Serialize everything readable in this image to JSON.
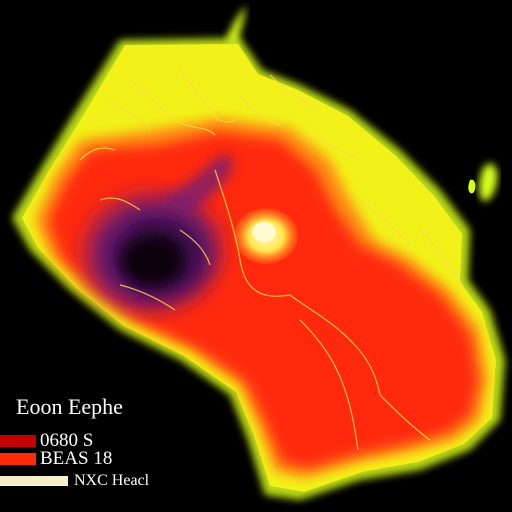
{
  "legend": {
    "title": "Eoon Eephe",
    "items": [
      {
        "label": "0680 S",
        "color": "#c40000"
      },
      {
        "label": "BEAS 18",
        "color": "#ff2a0a"
      },
      {
        "label": "NXC Heacl",
        "color": "#f5f0c8"
      }
    ]
  },
  "colors": {
    "background": "#000000",
    "outer_glow": "#d8ff1a",
    "yellow_band": "#f2f21a",
    "orange_band": "#ff8a14",
    "red_core": "#ff2a0a",
    "purple_hotspot": "#5a1470",
    "dark_center": "#120418",
    "hot_spot": "#fff27a",
    "river_lines": "#ffd84a"
  },
  "icons": [
    "heatmap-region",
    "river-network"
  ]
}
